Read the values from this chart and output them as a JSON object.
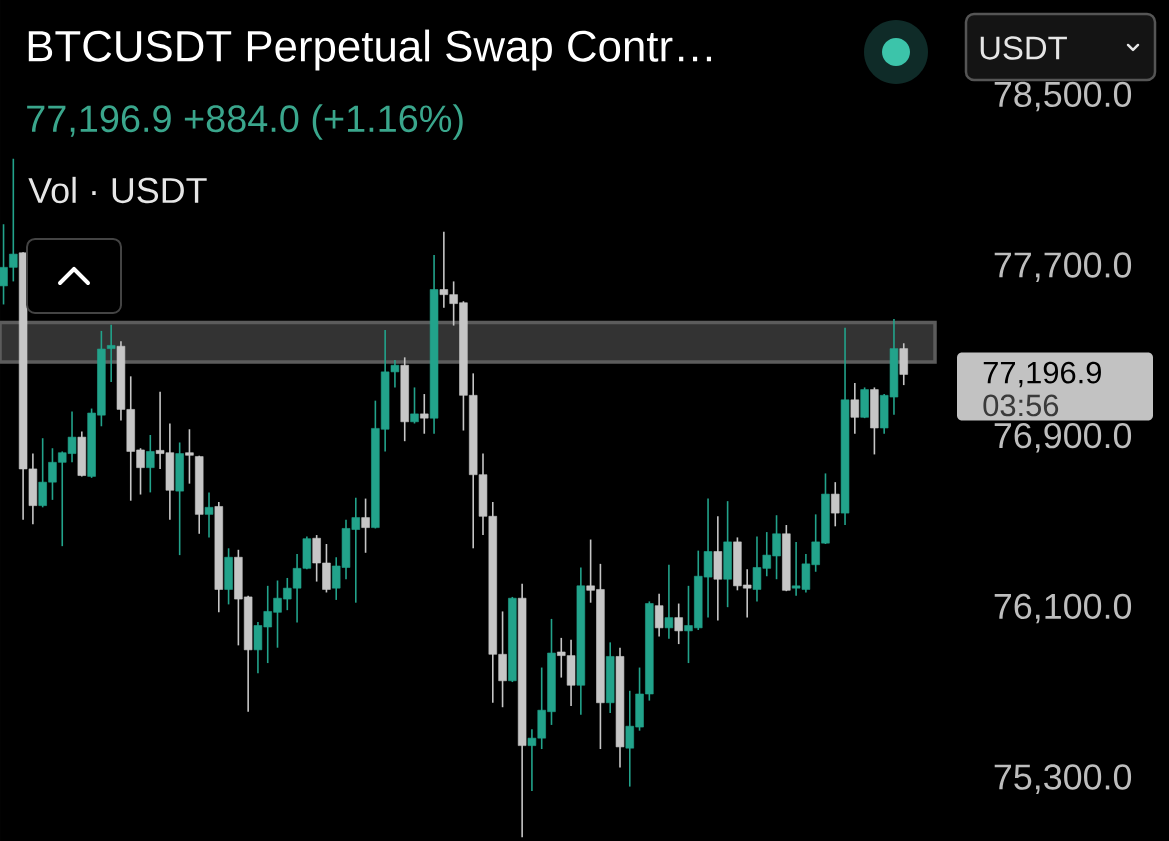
{
  "chart_data": {
    "type": "candlestick",
    "title": "BTCUSDT Perpetual Swap Contr…",
    "subtitle": "77,196.9 +884.0 (+1.16%)",
    "annotations": [
      "77,196.9",
      "Vol · USDT",
      "USDT",
      "03:56"
    ],
    "categories": [
      null,
      null,
      null,
      null,
      null,
      null,
      null,
      null,
      null,
      null,
      null,
      null,
      null,
      null,
      null,
      null,
      null,
      null,
      null,
      null,
      null,
      null,
      null,
      null,
      null,
      null,
      null,
      null,
      null,
      null,
      null,
      null,
      null,
      null,
      null,
      null,
      null,
      null,
      null,
      null,
      null,
      null,
      null,
      null,
      null,
      null,
      null,
      null,
      null,
      null,
      null,
      null,
      null,
      null,
      null,
      null,
      null,
      null,
      null,
      null,
      null,
      null,
      null,
      null,
      null,
      null,
      null,
      null,
      null,
      null,
      null,
      null,
      null,
      null,
      null,
      null,
      null,
      null,
      null,
      null,
      null,
      null,
      null,
      null,
      null,
      null,
      null,
      null,
      null,
      null,
      null,
      null,
      null
    ],
    "ohlc": [
      [
        77612,
        77901,
        77525,
        77699
      ],
      [
        77699,
        78208,
        77633,
        77761
      ],
      [
        77767,
        77770,
        76516,
        76754
      ],
      [
        76754,
        76826,
        76495,
        76582
      ],
      [
        76582,
        76898,
        76574,
        76692
      ],
      [
        76692,
        76851,
        76609,
        76785
      ],
      [
        76785,
        76836,
        76392,
        76830
      ],
      [
        76826,
        77023,
        76785,
        76903
      ],
      [
        76903,
        76930,
        76719,
        76723
      ],
      [
        76719,
        77037,
        76712,
        77016
      ],
      [
        77006,
        77401,
        76954,
        77316
      ],
      [
        77318,
        77430,
        77161,
        77333
      ],
      [
        77329,
        77353,
        76981,
        77033
      ],
      [
        77033,
        77188,
        76605,
        76836
      ],
      [
        76843,
        76851,
        76634,
        76760
      ],
      [
        76760,
        76913,
        76644,
        76836
      ],
      [
        76841,
        77116,
        76754,
        76826
      ],
      [
        76830,
        76967,
        76516,
        76654
      ],
      [
        76650,
        76878,
        76350,
        76826
      ],
      [
        76830,
        76940,
        76685,
        76818
      ],
      [
        76812,
        76816,
        76450,
        76541
      ],
      [
        76541,
        76644,
        76433,
        76574
      ],
      [
        76578,
        76599,
        76082,
        76189
      ],
      [
        76189,
        76382,
        76119,
        76340
      ],
      [
        76340,
        76375,
        75927,
        76144
      ],
      [
        76154,
        76160,
        75616,
        75906
      ],
      [
        75906,
        76036,
        75796,
        76020
      ],
      [
        76013,
        76206,
        75844,
        76086
      ],
      [
        76082,
        76231,
        75916,
        76148
      ],
      [
        76144,
        76243,
        76092,
        76195
      ],
      [
        76195,
        76355,
        76034,
        76288
      ],
      [
        76288,
        76437,
        76284,
        76427
      ],
      [
        76429,
        76444,
        76226,
        76313
      ],
      [
        76313,
        76402,
        76175,
        76189
      ],
      [
        76195,
        76340,
        76140,
        76299
      ],
      [
        76292,
        76516,
        76237,
        76475
      ],
      [
        76470,
        76619,
        76127,
        76526
      ],
      [
        76526,
        76615,
        76361,
        76479
      ],
      [
        76479,
        77074,
        76475,
        76944
      ],
      [
        76940,
        77405,
        76836,
        77209
      ],
      [
        77209,
        77265,
        77136,
        77240
      ],
      [
        77240,
        77277,
        76884,
        76975
      ],
      [
        76975,
        77136,
        76967,
        77012
      ],
      [
        77012,
        77105,
        76919,
        76992
      ],
      [
        76992,
        77757,
        76919,
        77595
      ],
      [
        77595,
        77866,
        77509,
        77571
      ],
      [
        77571,
        77633,
        77426,
        77529
      ],
      [
        77533,
        77540,
        76934,
        77099
      ],
      [
        77099,
        77202,
        76382,
        76727
      ],
      [
        76727,
        76826,
        76444,
        76532
      ],
      [
        76532,
        76599,
        75658,
        75885
      ],
      [
        75885,
        76086,
        75637,
        75761
      ],
      [
        75761,
        76154,
        75755,
        76148
      ],
      [
        76148,
        76216,
        75027,
        75457
      ],
      [
        75457,
        75534,
        75244,
        75492
      ],
      [
        75492,
        75823,
        75441,
        75623
      ],
      [
        75616,
        76051,
        75554,
        75891
      ],
      [
        75896,
        75962,
        75776,
        75879
      ],
      [
        75879,
        75953,
        75643,
        75740
      ],
      [
        75740,
        76292,
        75602,
        76206
      ],
      [
        76206,
        76423,
        76127,
        76185
      ],
      [
        76189,
        76309,
        75441,
        75658
      ],
      [
        75658,
        75941,
        75610,
        75875
      ],
      [
        75875,
        75916,
        75354,
        75451
      ],
      [
        75445,
        75714,
        75265,
        75548
      ],
      [
        75544,
        75823,
        75527,
        75699
      ],
      [
        75699,
        76133,
        75668,
        76123
      ],
      [
        76113,
        76169,
        75968,
        76009
      ],
      [
        76009,
        76305,
        75958,
        76057
      ],
      [
        76057,
        76123,
        75933,
        75995
      ],
      [
        75995,
        76206,
        75844,
        76020
      ],
      [
        76009,
        76371,
        75999,
        76251
      ],
      [
        76247,
        76615,
        76057,
        76367
      ],
      [
        76367,
        76532,
        76044,
        76237
      ],
      [
        76237,
        76603,
        76106,
        76412
      ],
      [
        76412,
        76433,
        76185,
        76206
      ],
      [
        76210,
        76284,
        76057,
        76195
      ],
      [
        76189,
        76437,
        76133,
        76292
      ],
      [
        76288,
        76458,
        76251,
        76350
      ],
      [
        76346,
        76537,
        76237,
        76450
      ],
      [
        76450,
        76491,
        76181,
        76185
      ],
      [
        76195,
        76412,
        76160,
        76206
      ],
      [
        76189,
        76355,
        76175,
        76309
      ],
      [
        76305,
        76541,
        76272,
        76412
      ],
      [
        76406,
        76733,
        76402,
        76636
      ],
      [
        76636,
        76692,
        76485,
        76547
      ],
      [
        76547,
        77416,
        76491,
        77078
      ],
      [
        77078,
        77157,
        76919,
        76996
      ],
      [
        76996,
        77136,
        76992,
        77126
      ],
      [
        77126,
        77136,
        76822,
        76946
      ],
      [
        76946,
        77105,
        76919,
        77099
      ],
      [
        77091,
        77457,
        77008,
        77318
      ],
      [
        77318,
        77343,
        77147,
        77196.9
      ]
    ],
    "colors": [
      "#22a38b",
      "#22a38b",
      "#c6c6c6",
      "#c6c6c6",
      "#22a38b",
      "#22a38b",
      "#22a38b",
      "#22a38b",
      "#c6c6c6",
      "#22a38b",
      "#22a38b",
      "#22a38b",
      "#c6c6c6",
      "#c6c6c6",
      "#c6c6c6",
      "#22a38b",
      "#c6c6c6",
      "#c6c6c6",
      "#22a38b",
      "#c6c6c6",
      "#c6c6c6",
      "#22a38b",
      "#c6c6c6",
      "#22a38b",
      "#c6c6c6",
      "#c6c6c6",
      "#22a38b",
      "#22a38b",
      "#22a38b",
      "#22a38b",
      "#22a38b",
      "#22a38b",
      "#c6c6c6",
      "#c6c6c6",
      "#22a38b",
      "#22a38b",
      "#22a38b",
      "#c6c6c6",
      "#22a38b",
      "#22a38b",
      "#22a38b",
      "#c6c6c6",
      "#22a38b",
      "#c6c6c6",
      "#22a38b",
      "#c6c6c6",
      "#c6c6c6",
      "#c6c6c6",
      "#c6c6c6",
      "#c6c6c6",
      "#c6c6c6",
      "#c6c6c6",
      "#22a38b",
      "#c6c6c6",
      "#22a38b",
      "#22a38b",
      "#22a38b",
      "#c6c6c6",
      "#c6c6c6",
      "#22a38b",
      "#c6c6c6",
      "#c6c6c6",
      "#22a38b",
      "#c6c6c6",
      "#22a38b",
      "#22a38b",
      "#22a38b",
      "#c6c6c6",
      "#22a38b",
      "#c6c6c6",
      "#22a38b",
      "#22a38b",
      "#22a38b",
      "#c6c6c6",
      "#22a38b",
      "#c6c6c6",
      "#c6c6c6",
      "#22a38b",
      "#22a38b",
      "#22a38b",
      "#c6c6c6",
      "#22a38b",
      "#22a38b",
      "#22a38b",
      "#22a38b",
      "#c6c6c6",
      "#22a38b",
      "#c6c6c6",
      "#22a38b",
      "#c6c6c6",
      "#22a38b",
      "#22a38b",
      "#c6c6c6"
    ],
    "ylim": [
      75010,
      78500
    ],
    "yticks": [
      {
        "value": 75300,
        "label": "75,300.0"
      },
      {
        "value": 76100,
        "label": "76,100.0"
      },
      {
        "value": 76900,
        "label": "76,900.0"
      },
      {
        "value": 77700,
        "label": "77,700.0"
      },
      {
        "value": 78500,
        "label": "78,500.0"
      }
    ],
    "bands": [
      {
        "axis": "y",
        "from": 77255,
        "to": 77440,
        "color": "#333333"
      }
    ]
  }
}
